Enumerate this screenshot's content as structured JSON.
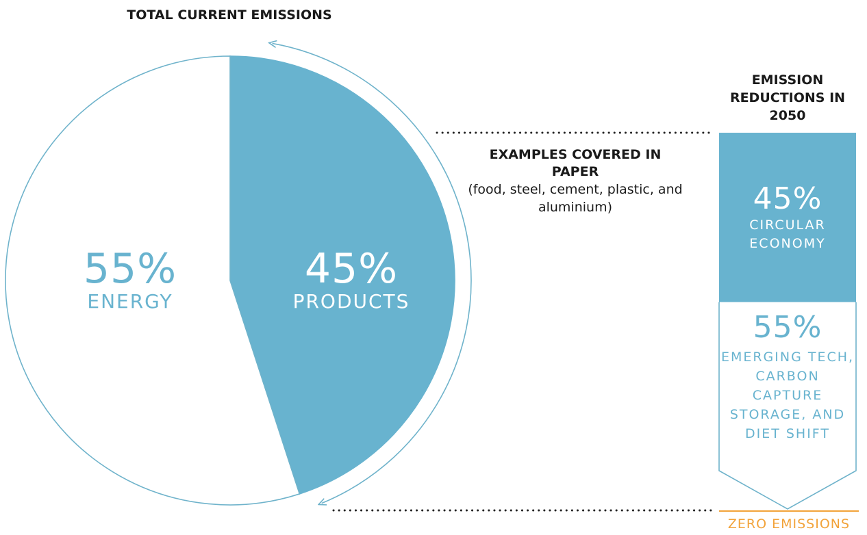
{
  "colors": {
    "accent": "#68b3cf",
    "outline": "#6fb3cb",
    "text_dark": "#1a1a1a",
    "dotted": "#222222",
    "zero_line": "#f2a33a"
  },
  "chart_data": [
    {
      "type": "pie",
      "title": "TOTAL CURRENT EMISSIONS",
      "slices": [
        {
          "label": "ENERGY",
          "value": 55,
          "value_label": "55%"
        },
        {
          "label": "PRODUCTS",
          "value": 45,
          "value_label": "45%"
        }
      ]
    },
    {
      "type": "bar",
      "title": "EMISSION REDUCTIONS IN 2050",
      "segments": [
        {
          "label": "CIRCULAR ECONOMY",
          "value": 45,
          "value_label": "45%"
        },
        {
          "label": "EMERGING TECH, CARBON CAPTURE STORAGE, AND DIET SHIFT",
          "value": 55,
          "value_label": "55%"
        }
      ],
      "baseline_label": "ZERO EMISSIONS"
    }
  ],
  "annotation": {
    "title": "EXAMPLES COVERED IN PAPER",
    "detail": "(food, steel, cement, plastic, and aluminium)"
  }
}
